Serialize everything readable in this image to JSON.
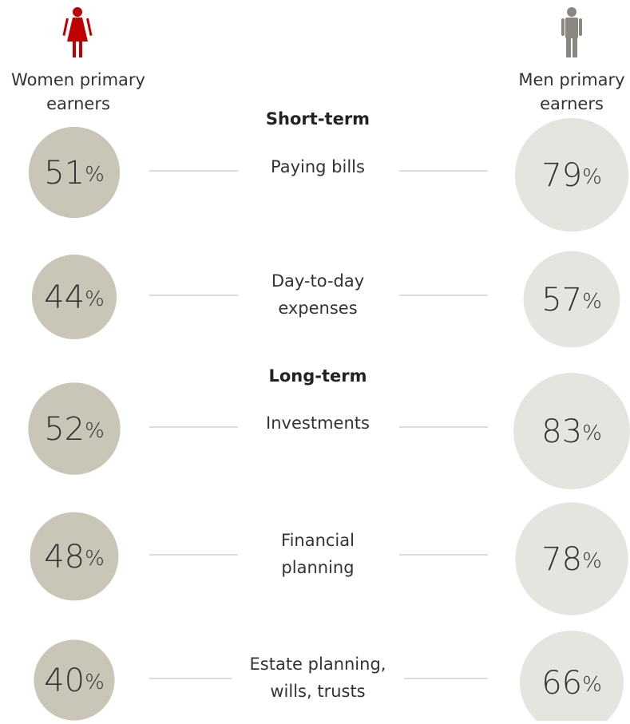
{
  "chart_data": {
    "type": "bubble",
    "groups": [
      {
        "title": "Short-term",
        "categories": [
          [
            "Paying bills"
          ],
          [
            "Day-to-day",
            "expenses"
          ]
        ]
      },
      {
        "title": "Long-term",
        "categories": [
          [
            "Investments"
          ],
          [
            "Financial",
            "planning"
          ],
          [
            "Estate planning,",
            "wills, trusts"
          ]
        ]
      }
    ],
    "series": [
      {
        "name": [
          "Women primary",
          "earners"
        ],
        "color": "#c9c5b7",
        "icon_color": "#c00000",
        "values": [
          51,
          44,
          52,
          48,
          40
        ],
        "value_labels": [
          "51%",
          "44%",
          "52%",
          "48%",
          "40%"
        ]
      },
      {
        "name": [
          "Men primary",
          "earners"
        ],
        "color": "#e6e4df",
        "icon_color": "#8a8780",
        "values": [
          79,
          57,
          83,
          78,
          66
        ],
        "value_labels": [
          "79%",
          "57%",
          "83%",
          "78%",
          "66%"
        ]
      }
    ]
  }
}
